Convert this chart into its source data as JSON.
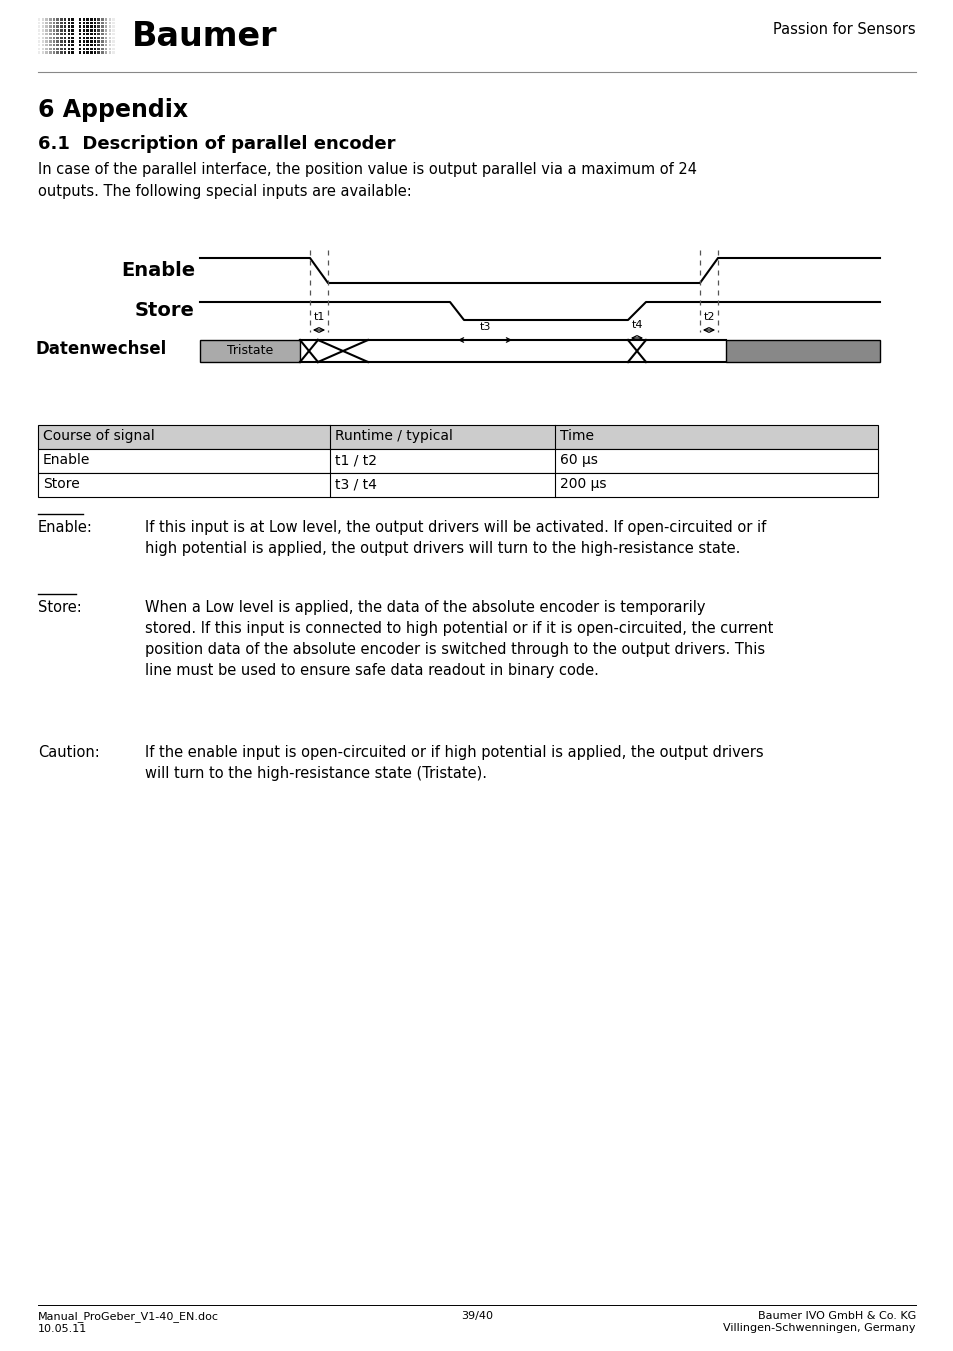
{
  "title_main": "6 Appendix",
  "title_sub": "6.1  Description of parallel encoder",
  "intro_text": "In case of the parallel interface, the position value is output parallel via a maximum of 24\noutputs. The following special inputs are available:",
  "signal_labels": [
    "Enable",
    "Store",
    "Datenwechsel"
  ],
  "tristate_label": "Tristate",
  "table_header": [
    "Course of signal",
    "Runtime / typical",
    "Time"
  ],
  "table_rows": [
    [
      "Enable",
      "t1 / t2",
      "60 µs"
    ],
    [
      "Store",
      "t3 / t4",
      "200 µs"
    ]
  ],
  "enable_label_text": "Enable:",
  "enable_body": "If this input is at Low level, the output drivers will be activated. If open-circuited or if\nhigh potential is applied, the output drivers will turn to the high-resistance state.",
  "store_label_text": "Store:",
  "store_body": "When a Low level is applied, the data of the absolute encoder is temporarily\nstored. If this input is connected to high potential or if it is open-circuited, the current\nposition data of the absolute encoder is switched through to the output drivers. This\nline must be used to ensure safe data readout in binary code.",
  "caution_label": "Caution:",
  "caution_body": "If the enable input is open-circuited or if high potential is applied, the output drivers\nwill turn to the high-resistance state (Tristate).",
  "footer_left": "Manual_ProGeber_V1-40_EN.doc\n10.05.11",
  "footer_center": "39/40",
  "footer_right": "Baumer IVO GmbH & Co. KG\nVillingen-Schwenningen, Germany",
  "logo_text": "Baumer",
  "tagline": "Passion for Sensors",
  "bg_color": "#ffffff",
  "text_color": "#000000",
  "table_header_bg": "#cccccc",
  "signal_line_color": "#000000",
  "tristate_box_color": "#aaaaaa",
  "grey_end_color": "#888888"
}
